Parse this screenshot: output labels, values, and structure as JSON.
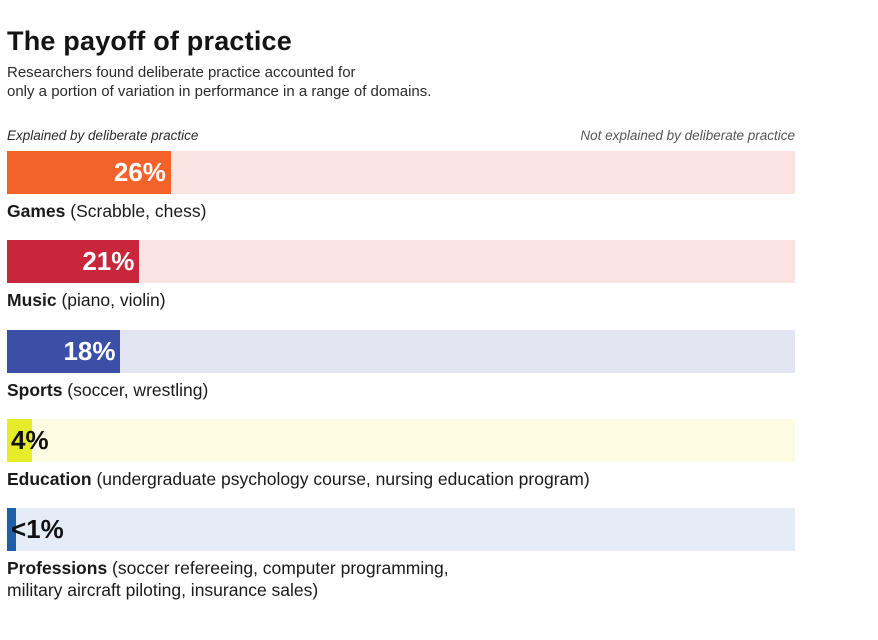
{
  "title": "The payoff of practice",
  "subtitle": "Researchers found deliberate practice accounted for\nonly a portion of variation in performance in a range of domains.",
  "legend": {
    "left": "Explained by deliberate practice",
    "right": "Not explained by deliberate practice"
  },
  "chart_data": {
    "type": "bar",
    "orientation": "horizontal",
    "stacked_to_100": true,
    "categories": [
      "Games",
      "Music",
      "Sports",
      "Education",
      "Professions"
    ],
    "category_details": [
      "(Scrabble, chess)",
      "(piano, violin)",
      "(soccer, wrestling)",
      "(undergraduate psychology course, nursing education program)",
      "(soccer refereeing, computer programming, military aircraft piloting, insurance sales)"
    ],
    "series": [
      {
        "name": "Explained by deliberate practice",
        "values": [
          26,
          21,
          18,
          4,
          1
        ]
      },
      {
        "name": "Not explained by deliberate practice",
        "values": [
          74,
          79,
          82,
          96,
          99
        ]
      }
    ],
    "value_labels": [
      "26%",
      "21%",
      "18%",
      "4%",
      "<1%"
    ],
    "fill_colors": [
      "#f2622a",
      "#c8263a",
      "#3b4fa6",
      "#e6ec2a",
      "#1f5fa8"
    ],
    "background_colors": [
      "#fbe3e2",
      "#fbe3e2",
      "#e3e6f2",
      "#fdfbe2",
      "#e4ecf8"
    ],
    "value_label_colors": [
      "#ffffff",
      "#ffffff",
      "#ffffff",
      "#111111",
      "#111111"
    ],
    "xlim": [
      0,
      100
    ]
  },
  "labels": [
    {
      "bold": "Games",
      "rest": " (Scrabble, chess)"
    },
    {
      "bold": "Music",
      "rest": " (piano, violin)"
    },
    {
      "bold": "Sports",
      "rest": " (soccer, wrestling)"
    },
    {
      "bold": "Education",
      "rest": " (undergraduate psychology course, nursing education program)"
    },
    {
      "bold": "Professions",
      "rest": " (soccer refereeing, computer programming,\nmilitary aircraft piloting, insurance sales)"
    }
  ]
}
